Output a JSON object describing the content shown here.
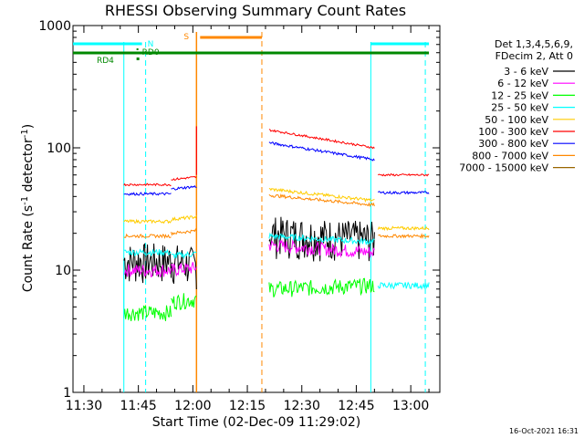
{
  "chart_data": {
    "type": "line",
    "title": "RHESSI Observing Summary Count Rates",
    "xlabel": "Start Time (02-Dec-09 11:29:02)",
    "ylabel_prefix": "Count Rate (s",
    "ylabel_sup1": "-1",
    "ylabel_mid": " detector",
    "ylabel_sup2": "-1",
    "ylabel_suffix": ")",
    "x_domain_min": [
      11,
      27
    ],
    "x_domain_max": [
      13,
      8
    ],
    "y_scale": "log",
    "ylim": [
      1,
      1000
    ],
    "x_ticks": [
      "11:30",
      "11:45",
      "12:00",
      "12:15",
      "12:30",
      "12:45",
      "13:00"
    ],
    "x_tick_minutes": [
      [
        11,
        30
      ],
      [
        11,
        45
      ],
      [
        12,
        0
      ],
      [
        12,
        15
      ],
      [
        12,
        30
      ],
      [
        12,
        45
      ],
      [
        13,
        0
      ]
    ],
    "y_ticks": [
      {
        "value": 1,
        "label": "1"
      },
      {
        "value": 10,
        "label": "10"
      },
      {
        "value": 100,
        "label": "100"
      },
      {
        "value": 1000,
        "label": "1000"
      }
    ],
    "legend_header": [
      "Det 1,3,4,5,6,9,",
      "FDecim 2, Att 0"
    ],
    "legend_position": "right",
    "series": [
      {
        "name": "3 - 6 keV",
        "color": "#000000",
        "segments": [
          [
            [
              11,
              40
            ],
            [
              11,
              45
            ],
            [
              12,
              1
            ],
            [
              13,
              2
            ]
          ]
        ],
        "values_seg": [
          [
            12,
            12,
            11,
            11
          ]
        ],
        "late": [
          [
            12,
            21
          ],
          [
            12,
            49
          ],
          20,
          18
        ]
      },
      {
        "name": "6 - 12 keV",
        "color": "#ff00ff",
        "values": [
          10,
          10,
          10,
          16,
          15,
          14
        ]
      },
      {
        "name": "12 - 25 keV",
        "color": "#00ff00",
        "values": [
          4.5,
          5,
          5,
          7,
          7,
          7.5
        ]
      },
      {
        "name": "25 - 50 keV",
        "color": "#00ffff",
        "values": [
          14,
          14,
          13,
          19,
          18,
          17,
          7.5
        ]
      },
      {
        "name": "50 - 100 keV",
        "color": "#ffcc00",
        "values": [
          25,
          25,
          26,
          46,
          40,
          37,
          22
        ]
      },
      {
        "name": "100 - 300 keV",
        "color": "#ff0000",
        "values": [
          50,
          50,
          65,
          140,
          120,
          100,
          60
        ]
      },
      {
        "name": "300 - 800 keV",
        "color": "#0000ff",
        "values": [
          42,
          42,
          50,
          110,
          90,
          80,
          43
        ]
      },
      {
        "name": "800 - 7000 keV",
        "color": "#ff8800",
        "values": [
          19,
          20,
          20,
          41,
          37,
          34,
          19
        ]
      },
      {
        "name": "7000 - 15000 keV",
        "color": "#996600",
        "values": []
      }
    ],
    "annotations": {
      "s_label": "S",
      "n_label": "N",
      "rd4_label": "RD4",
      "rd0_label": "RD0"
    }
  },
  "footer": {
    "timestamp": "16-Oct-2021 16:31"
  }
}
